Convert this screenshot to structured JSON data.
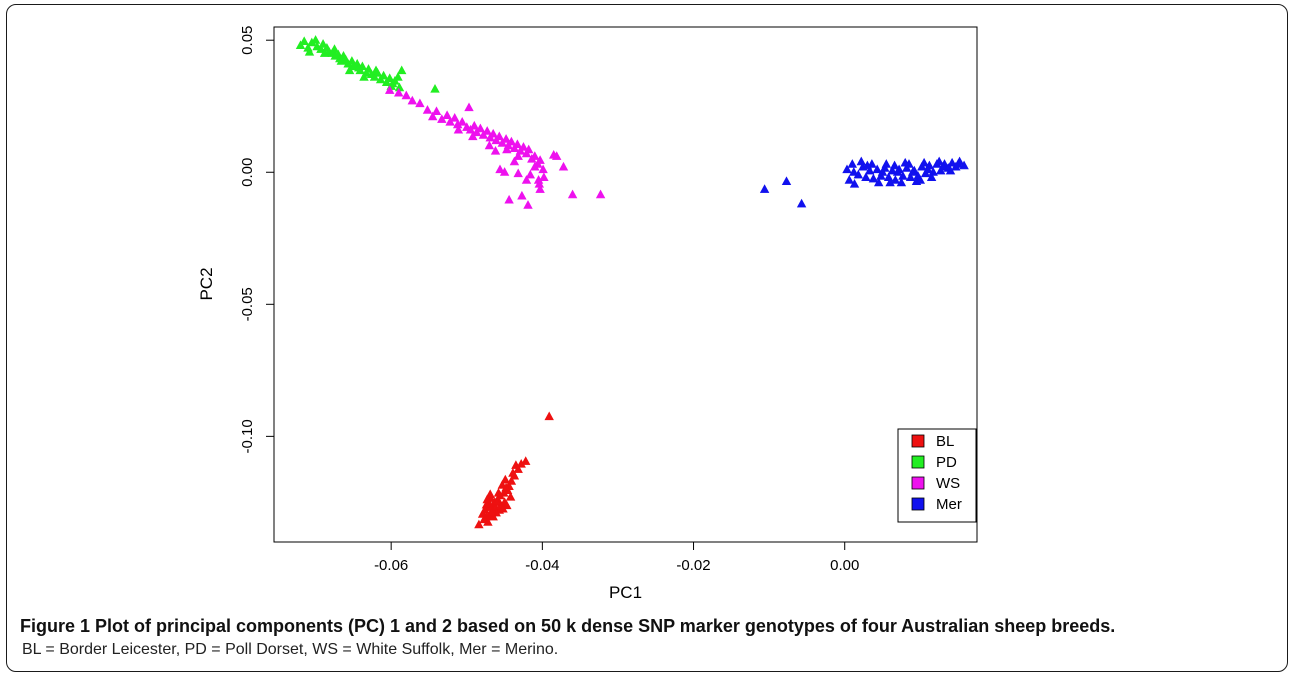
{
  "chart_data": {
    "type": "scatter",
    "title": "",
    "xlabel": "PC1",
    "ylabel": "PC2",
    "xlim": [
      -0.0755,
      0.0175
    ],
    "ylim": [
      -0.14,
      0.055
    ],
    "xticks": [
      -0.06,
      -0.04,
      -0.02,
      0.0
    ],
    "xtick_labels": [
      "-0.06",
      "-0.04",
      "-0.02",
      "0.00"
    ],
    "yticks": [
      0.05,
      0.0,
      -0.05,
      -0.1
    ],
    "ytick_labels": [
      "0.05",
      "0.00",
      "-0.05",
      "-0.10"
    ],
    "marker": "triangle",
    "grid": false,
    "legend_position": "bottom-right",
    "series": [
      {
        "name": "BL",
        "color": "#ee1111",
        "points": [
          [
            -0.0391,
            -0.0925
          ],
          [
            -0.0422,
            -0.1095
          ],
          [
            -0.0428,
            -0.1105
          ],
          [
            -0.0432,
            -0.1125
          ],
          [
            -0.0437,
            -0.115
          ],
          [
            -0.0441,
            -0.117
          ],
          [
            -0.0444,
            -0.119
          ],
          [
            -0.0449,
            -0.1165
          ],
          [
            -0.0453,
            -0.1185
          ],
          [
            -0.0446,
            -0.1205
          ],
          [
            -0.0451,
            -0.1215
          ],
          [
            -0.0456,
            -0.1225
          ],
          [
            -0.0459,
            -0.124
          ],
          [
            -0.0463,
            -0.125
          ],
          [
            -0.0468,
            -0.1235
          ],
          [
            -0.0471,
            -0.1255
          ],
          [
            -0.0466,
            -0.1265
          ],
          [
            -0.0462,
            -0.127
          ],
          [
            -0.0457,
            -0.128
          ],
          [
            -0.0461,
            -0.129
          ],
          [
            -0.0466,
            -0.1285
          ],
          [
            -0.0471,
            -0.127
          ],
          [
            -0.0474,
            -0.126
          ],
          [
            -0.0476,
            -0.128
          ],
          [
            -0.047,
            -0.13
          ],
          [
            -0.0465,
            -0.1305
          ],
          [
            -0.0474,
            -0.1305
          ],
          [
            -0.0479,
            -0.1295
          ],
          [
            -0.0477,
            -0.1315
          ],
          [
            -0.0472,
            -0.1325
          ],
          [
            -0.0484,
            -0.1335
          ],
          [
            -0.045,
            -0.125
          ],
          [
            -0.0447,
            -0.1262
          ],
          [
            -0.0455,
            -0.1262
          ],
          [
            -0.046,
            -0.1248
          ],
          [
            -0.0458,
            -0.1215
          ],
          [
            -0.0448,
            -0.1195
          ],
          [
            -0.0439,
            -0.114
          ],
          [
            -0.0435,
            -0.111
          ],
          [
            -0.0442,
            -0.123
          ],
          [
            -0.0452,
            -0.1275
          ],
          [
            -0.0469,
            -0.122
          ],
          [
            -0.0473,
            -0.124
          ],
          [
            -0.0467,
            -0.129
          ]
        ]
      },
      {
        "name": "PD",
        "color": "#22ee22",
        "points": [
          [
            -0.072,
            0.048
          ],
          [
            -0.0715,
            0.0495
          ],
          [
            -0.071,
            0.047
          ],
          [
            -0.0705,
            0.049
          ],
          [
            -0.07,
            0.05
          ],
          [
            -0.0698,
            0.0475
          ],
          [
            -0.0693,
            0.0465
          ],
          [
            -0.069,
            0.0485
          ],
          [
            -0.0685,
            0.047
          ],
          [
            -0.0682,
            0.0455
          ],
          [
            -0.0678,
            0.045
          ],
          [
            -0.0675,
            0.0465
          ],
          [
            -0.067,
            0.0445
          ],
          [
            -0.0668,
            0.043
          ],
          [
            -0.0663,
            0.044
          ],
          [
            -0.066,
            0.0425
          ],
          [
            -0.0657,
            0.041
          ],
          [
            -0.0652,
            0.042
          ],
          [
            -0.065,
            0.04
          ],
          [
            -0.0645,
            0.041
          ],
          [
            -0.0641,
            0.0385
          ],
          [
            -0.0638,
            0.04
          ],
          [
            -0.0633,
            0.0375
          ],
          [
            -0.063,
            0.039
          ],
          [
            -0.0626,
            0.037
          ],
          [
            -0.0622,
            0.036
          ],
          [
            -0.0618,
            0.0375
          ],
          [
            -0.0614,
            0.035
          ],
          [
            -0.061,
            0.0365
          ],
          [
            -0.0606,
            0.034
          ],
          [
            -0.0602,
            0.0355
          ],
          [
            -0.0598,
            0.0335
          ],
          [
            -0.0595,
            0.0345
          ],
          [
            -0.0591,
            0.036
          ],
          [
            -0.0586,
            0.0385
          ],
          [
            -0.0589,
            0.032
          ],
          [
            -0.0542,
            0.0315
          ],
          [
            -0.0708,
            0.0455
          ],
          [
            -0.0688,
            0.045
          ],
          [
            -0.0666,
            0.042
          ],
          [
            -0.0643,
            0.0395
          ],
          [
            -0.062,
            0.0385
          ],
          [
            -0.06,
            0.0325
          ],
          [
            -0.0674,
            0.044
          ],
          [
            -0.0655,
            0.0385
          ],
          [
            -0.0636,
            0.036
          ]
        ]
      },
      {
        "name": "WS",
        "color": "#ee11ee",
        "points": [
          [
            -0.0602,
            0.031
          ],
          [
            -0.059,
            0.03
          ],
          [
            -0.058,
            0.029
          ],
          [
            -0.0572,
            0.027
          ],
          [
            -0.0562,
            0.026
          ],
          [
            -0.0552,
            0.0235
          ],
          [
            -0.0545,
            0.021
          ],
          [
            -0.054,
            0.023
          ],
          [
            -0.0533,
            0.02
          ],
          [
            -0.0526,
            0.0215
          ],
          [
            -0.0522,
            0.019
          ],
          [
            -0.0516,
            0.0205
          ],
          [
            -0.0512,
            0.018
          ],
          [
            -0.0506,
            0.019
          ],
          [
            -0.05,
            0.017
          ],
          [
            -0.0497,
            0.0245
          ],
          [
            -0.0495,
            0.016
          ],
          [
            -0.049,
            0.0175
          ],
          [
            -0.0487,
            0.015
          ],
          [
            -0.0482,
            0.0165
          ],
          [
            -0.0478,
            0.014
          ],
          [
            -0.0473,
            0.0155
          ],
          [
            -0.0469,
            0.013
          ],
          [
            -0.0465,
            0.0145
          ],
          [
            -0.0461,
            0.012
          ],
          [
            -0.0457,
            0.0135
          ],
          [
            -0.0453,
            0.011
          ],
          [
            -0.0448,
            0.0125
          ],
          [
            -0.0445,
            0.01
          ],
          [
            -0.0441,
            0.0115
          ],
          [
            -0.0437,
            0.009
          ],
          [
            -0.0433,
            0.0105
          ],
          [
            -0.0429,
            0.008
          ],
          [
            -0.0425,
            0.0095
          ],
          [
            -0.0421,
            0.007
          ],
          [
            -0.0418,
            0.0085
          ],
          [
            -0.0414,
            0.005
          ],
          [
            -0.041,
            0.006
          ],
          [
            -0.0406,
            0.003
          ],
          [
            -0.0403,
            0.0045
          ],
          [
            -0.0416,
            -0.001
          ],
          [
            -0.0421,
            -0.003
          ],
          [
            -0.0432,
            -0.0005
          ],
          [
            -0.045,
            0.0
          ],
          [
            -0.0456,
            0.001
          ],
          [
            -0.0462,
            0.008
          ],
          [
            -0.0403,
            -0.0065
          ],
          [
            -0.0427,
            -0.009
          ],
          [
            -0.0404,
            -0.0045
          ],
          [
            -0.0419,
            -0.0125
          ],
          [
            -0.0444,
            -0.0105
          ],
          [
            -0.0399,
            0.001
          ],
          [
            -0.0385,
            0.0065
          ],
          [
            -0.0381,
            0.006
          ],
          [
            -0.0372,
            0.002
          ],
          [
            -0.036,
            -0.0085
          ],
          [
            -0.0323,
            -0.0085
          ],
          [
            -0.0511,
            0.016
          ],
          [
            -0.0492,
            0.0135
          ],
          [
            -0.047,
            0.01
          ],
          [
            -0.0447,
            0.0085
          ],
          [
            -0.0432,
            0.006
          ],
          [
            -0.041,
            0.002
          ],
          [
            -0.0398,
            -0.002
          ],
          [
            -0.0405,
            -0.003
          ],
          [
            -0.0437,
            0.004
          ]
        ]
      },
      {
        "name": "Mer",
        "color": "#1111ee",
        "points": [
          [
            -0.0106,
            -0.0065
          ],
          [
            -0.0077,
            -0.0035
          ],
          [
            -0.0057,
            -0.012
          ],
          [
            0.0003,
            0.001
          ],
          [
            0.0006,
            -0.003
          ],
          [
            0.0012,
            0.0
          ],
          [
            0.0018,
            -0.001
          ],
          [
            0.0024,
            0.002
          ],
          [
            0.0028,
            -0.002
          ],
          [
            0.0033,
            0.0005
          ],
          [
            0.0038,
            -0.0025
          ],
          [
            0.0043,
            0.001
          ],
          [
            0.0048,
            -0.0015
          ],
          [
            0.0053,
            0.0015
          ],
          [
            0.0058,
            -0.002
          ],
          [
            0.0063,
            0.0005
          ],
          [
            0.0067,
            -0.003
          ],
          [
            0.0072,
            0.001
          ],
          [
            0.0077,
            -0.0015
          ],
          [
            0.0082,
            0.0015
          ],
          [
            0.0087,
            -0.002
          ],
          [
            0.0092,
            0.0005
          ],
          [
            0.0097,
            -0.0015
          ],
          [
            0.0102,
            0.002
          ],
          [
            0.0107,
            -0.0005
          ],
          [
            0.0112,
            0.0025
          ],
          [
            0.0117,
            0.0
          ],
          [
            0.0122,
            0.003
          ],
          [
            0.0127,
            0.0005
          ],
          [
            0.0132,
            0.003
          ],
          [
            0.0137,
            0.0015
          ],
          [
            0.0142,
            0.0035
          ],
          [
            0.0147,
            0.002
          ],
          [
            0.0152,
            0.004
          ],
          [
            0.0158,
            0.0025
          ],
          [
            0.0036,
            0.003
          ],
          [
            0.0045,
            -0.004
          ],
          [
            0.0055,
            0.003
          ],
          [
            0.0066,
            0.0025
          ],
          [
            0.0075,
            -0.004
          ],
          [
            0.0085,
            0.003
          ],
          [
            0.0095,
            -0.0035
          ],
          [
            0.0105,
            0.0035
          ],
          [
            0.0115,
            -0.002
          ],
          [
            0.0125,
            0.004
          ],
          [
            0.0013,
            -0.0045
          ],
          [
            0.0022,
            0.004
          ],
          [
            0.005,
            0.0
          ],
          [
            0.007,
            0.0
          ],
          [
            0.009,
            0.0
          ],
          [
            0.011,
            0.001
          ],
          [
            0.013,
            0.002
          ],
          [
            0.015,
            0.003
          ],
          [
            0.008,
            0.0035
          ],
          [
            0.006,
            -0.004
          ],
          [
            0.01,
            -0.003
          ],
          [
            0.014,
            0.0005
          ],
          [
            0.003,
            0.0025
          ],
          [
            0.001,
            0.003
          ]
        ]
      }
    ]
  },
  "caption": {
    "title": "Figure 1 Plot of principal components (PC) 1 and 2 based on 50 k dense SNP marker genotypes of four Australian sheep breeds.",
    "note": "BL = Border Leicester, PD = Poll Dorset, WS = White Suffolk, Mer = Merino."
  }
}
